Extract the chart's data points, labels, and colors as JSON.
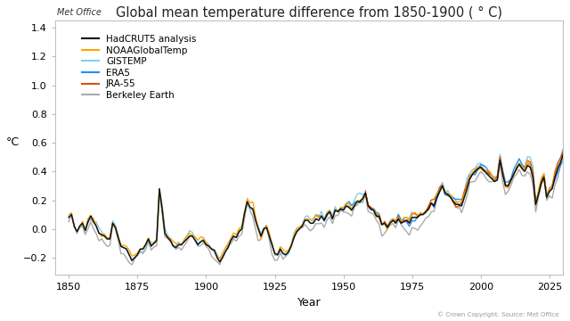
{
  "title": "Global mean temperature difference from 1850-1900 ( ° C)",
  "xlabel": "Year",
  "ylabel": "°C",
  "ylim": [
    -0.32,
    1.45
  ],
  "xlim": [
    1845,
    2030
  ],
  "xticks": [
    1850,
    1875,
    1900,
    1925,
    1950,
    1975,
    2000,
    2025
  ],
  "yticks": [
    -0.2,
    0.0,
    0.2,
    0.4,
    0.6,
    0.8,
    1.0,
    1.2,
    1.4
  ],
  "background_color": "#ffffff",
  "series": {
    "HadCRUT5 analysis": {
      "color": "#111111",
      "lw": 1.1,
      "zorder": 5
    },
    "NOAAGlobalTemp": {
      "color": "#FFA500",
      "lw": 1.0,
      "zorder": 4
    },
    "GISTEMP": {
      "color": "#87CEEB",
      "lw": 1.0,
      "zorder": 3
    },
    "ERA5": {
      "color": "#1E90FF",
      "lw": 1.0,
      "zorder": 3
    },
    "JRA-55": {
      "color": "#E05000",
      "lw": 1.0,
      "zorder": 3
    },
    "Berkeley Earth": {
      "color": "#aaaaaa",
      "lw": 1.0,
      "zorder": 2
    }
  },
  "copyright_text": "© Crown Copyright. Source: Met Office",
  "metoffice_logo_text": "Met Office",
  "title_fontsize": 10.5,
  "axis_label_fontsize": 9,
  "tick_fontsize": 8,
  "legend_fontsize": 7.5
}
